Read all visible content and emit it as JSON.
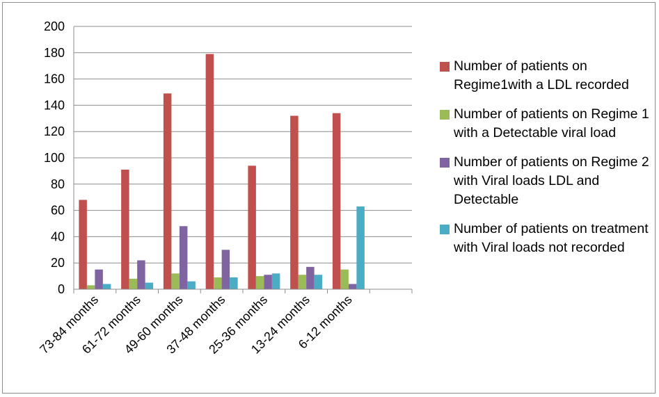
{
  "chart_data": {
    "type": "bar",
    "categories": [
      "73-84 months",
      "61-72 months",
      "49-60 months",
      "37-48 months",
      "25-36 months",
      "13-24 months",
      "6-12 months",
      ""
    ],
    "ylim": [
      0,
      200
    ],
    "yticks": [
      0,
      20,
      40,
      60,
      80,
      100,
      120,
      140,
      160,
      180,
      200
    ],
    "grid": true,
    "legend_position": "right",
    "series": [
      {
        "name": "Number of patients on Regime1with a LDL recorded",
        "color": "#c0504d",
        "values": [
          68,
          91,
          149,
          179,
          94,
          132,
          134,
          null
        ]
      },
      {
        "name": "Number of patients on Regime 1 with a Detectable viral load",
        "color": "#9bbb59",
        "values": [
          3,
          8,
          12,
          9,
          10,
          11,
          15,
          null
        ]
      },
      {
        "name": "Number of patients on Regime 2 with Viral loads LDL and Detectable",
        "color": "#8064a2",
        "values": [
          15,
          22,
          48,
          30,
          11,
          17,
          4,
          null
        ]
      },
      {
        "name": "Number of patients on treatment with Viral loads not recorded",
        "color": "#4bacc6",
        "values": [
          4,
          5,
          6,
          9,
          12,
          11,
          63,
          null
        ]
      }
    ]
  }
}
